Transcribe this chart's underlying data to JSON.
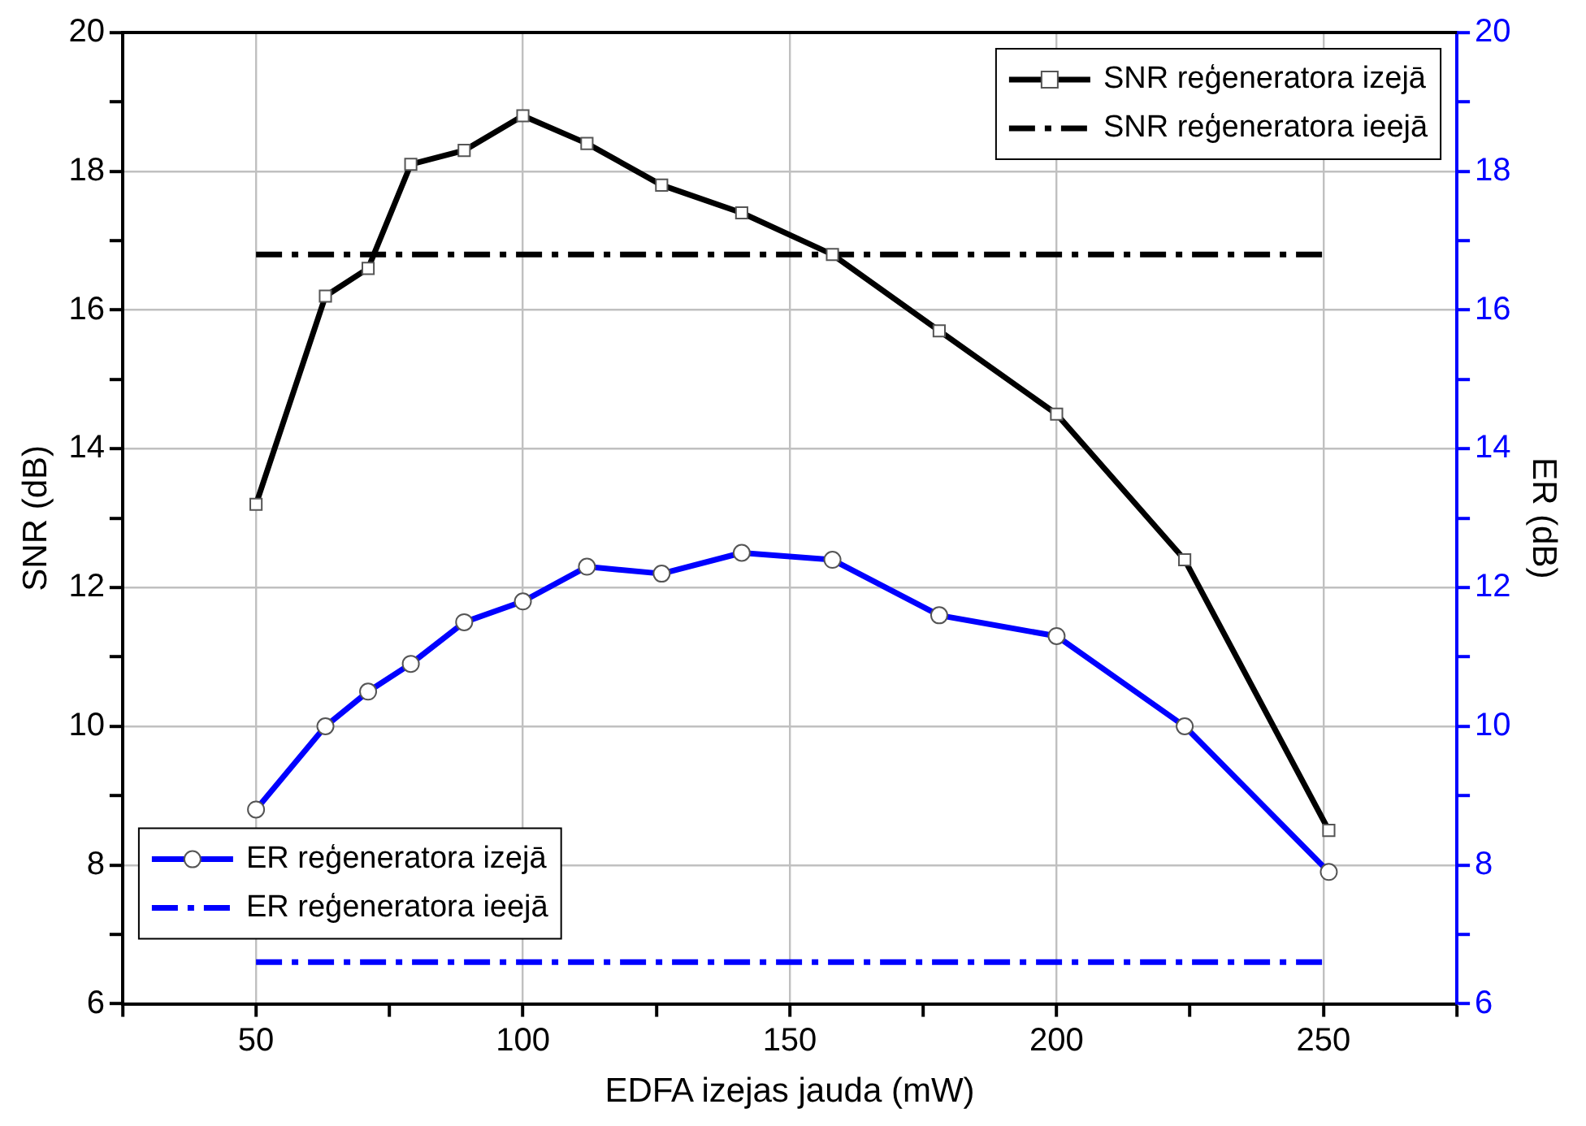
{
  "chart_data": {
    "type": "line",
    "xlabel": "EDFA izejas jauda (mW)",
    "ylabel": "SNR (dB)",
    "y2label": "ER (dB)",
    "xlim": [
      25,
      275
    ],
    "xticks": [
      {
        "value": 25,
        "label": null
      },
      50,
      {
        "value": 75,
        "label": null
      },
      100,
      {
        "value": 125,
        "label": null
      },
      150,
      {
        "value": 175,
        "label": null
      },
      200,
      {
        "value": 225,
        "label": null
      },
      250,
      {
        "value": 275,
        "label": null
      }
    ],
    "ylim": [
      6,
      20
    ],
    "yticks": [
      6,
      {
        "value": 7,
        "label": null
      },
      8,
      {
        "value": 9,
        "label": null
      },
      10,
      {
        "value": 11,
        "label": null
      },
      12,
      {
        "value": 13,
        "label": null
      },
      14,
      {
        "value": 15,
        "label": null
      },
      16,
      {
        "value": 17,
        "label": null
      },
      18,
      {
        "value": 19,
        "label": null
      },
      20
    ],
    "y2lim": [
      6,
      20
    ],
    "y2ticks": [
      6,
      {
        "value": 7,
        "label": null
      },
      8,
      {
        "value": 9,
        "label": null
      },
      10,
      {
        "value": 11,
        "label": null
      },
      12,
      {
        "value": 13,
        "label": null
      },
      14,
      {
        "value": 15,
        "label": null
      },
      16,
      {
        "value": 17,
        "label": null
      },
      18,
      {
        "value": 19,
        "label": null
      },
      20
    ],
    "grid": true,
    "legend": "top right",
    "series": [
      {
        "name": "SNR reģeneratora izejā",
        "color": "#000000",
        "marker": "square",
        "line_style": "solid",
        "x": [
          50,
          63,
          71,
          79,
          89,
          100,
          112,
          126,
          141,
          158,
          178,
          200,
          224,
          251
        ],
        "values": [
          13.2,
          16.2,
          16.6,
          18.1,
          18.3,
          18.8,
          18.4,
          17.8,
          17.4,
          16.8,
          15.7,
          14.5,
          12.4,
          8.5
        ]
      },
      {
        "name": "SNR reģeneratora ieejā",
        "color": "#000000",
        "marker": "none",
        "line_style": "dashed",
        "x": [
          50,
          250
        ],
        "values": [
          16.8,
          16.8
        ]
      },
      {
        "name": "ER reģeneratora izejā",
        "color": "#0000ff",
        "marker": "circle",
        "line_style": "solid",
        "axis": "y2",
        "x": [
          50,
          63,
          71,
          79,
          89,
          100,
          112,
          126,
          141,
          158,
          178,
          200,
          224,
          251
        ],
        "values": [
          8.8,
          10,
          10.5,
          10.9,
          11.5,
          11.8,
          12.3,
          12.2,
          12.5,
          12.4,
          11.6,
          11.3,
          10,
          7.9
        ]
      },
      {
        "name": "ER reģeneratora ieejā",
        "color": "#0000ff",
        "marker": "none",
        "line_style": "dashed",
        "axis": "y2",
        "x": [
          50,
          250
        ],
        "values": [
          6.6,
          6.6
        ]
      }
    ]
  }
}
